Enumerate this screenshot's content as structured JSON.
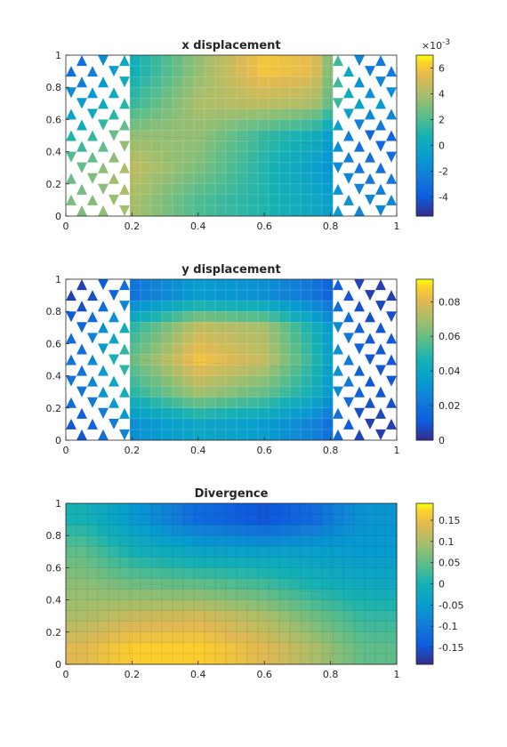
{
  "chart_data": [
    {
      "type": "heatmap",
      "title": "x displacement",
      "xlabel": "",
      "ylabel": "",
      "xlim": [
        0,
        1
      ],
      "ylim": [
        0,
        1
      ],
      "x_ticks": [
        "0",
        "0.2",
        "0.4",
        "0.6",
        "0.8",
        "1"
      ],
      "y_ticks": [
        "0",
        "0.2",
        "0.4",
        "0.6",
        "0.8",
        "1"
      ],
      "colorbar": {
        "range": [
          -5.5,
          7
        ],
        "ticks": [
          "-4",
          "-2",
          "0",
          "2",
          "4",
          "6"
        ],
        "tick_values": [
          -4,
          -2,
          0,
          2,
          4,
          6
        ],
        "exponent_base": "×10",
        "exponent_power": "-3"
      },
      "field_samples": {
        "x": [
          0.05,
          0.2,
          0.4,
          0.6,
          0.75,
          0.9
        ],
        "y": [
          0.1,
          0.3,
          0.5,
          0.7,
          0.9
        ],
        "values": [
          [
            3.0,
            4.0,
            2.0,
            1.0,
            0.0,
            -2.0
          ],
          [
            2.5,
            4.5,
            3.0,
            1.0,
            -0.5,
            -3.0
          ],
          [
            1.0,
            3.5,
            3.5,
            1.5,
            0.5,
            -3.5
          ],
          [
            -1.0,
            1.5,
            4.0,
            4.5,
            4.0,
            -1.0
          ],
          [
            -3.0,
            0.5,
            3.5,
            6.0,
            5.5,
            -2.5
          ]
        ]
      }
    },
    {
      "type": "heatmap",
      "title": "y displacement",
      "xlabel": "",
      "ylabel": "",
      "xlim": [
        0,
        1
      ],
      "ylim": [
        0,
        1
      ],
      "x_ticks": [
        "0",
        "0.2",
        "0.4",
        "0.6",
        "0.8",
        "1"
      ],
      "y_ticks": [
        "0",
        "0.2",
        "0.4",
        "0.6",
        "0.8",
        "1"
      ],
      "colorbar": {
        "range": [
          0,
          0.093
        ],
        "ticks": [
          "0",
          "0.02",
          "0.04",
          "0.06",
          "0.08"
        ],
        "tick_values": [
          0,
          0.02,
          0.04,
          0.06,
          0.08
        ]
      },
      "field_samples": {
        "x": [
          0.05,
          0.2,
          0.4,
          0.6,
          0.75,
          0.9
        ],
        "y": [
          0.1,
          0.3,
          0.5,
          0.7,
          0.9
        ],
        "values": [
          [
            0.01,
            0.03,
            0.04,
            0.035,
            0.025,
            0.005
          ],
          [
            0.02,
            0.05,
            0.07,
            0.06,
            0.045,
            0.01
          ],
          [
            0.02,
            0.06,
            0.085,
            0.075,
            0.05,
            0.01
          ],
          [
            0.015,
            0.05,
            0.075,
            0.07,
            0.045,
            0.01
          ],
          [
            0.005,
            0.02,
            0.035,
            0.03,
            0.02,
            0.005
          ]
        ]
      }
    },
    {
      "type": "heatmap",
      "title": "Divergence",
      "xlabel": "",
      "ylabel": "",
      "xlim": [
        0,
        1
      ],
      "ylim": [
        0,
        1
      ],
      "x_ticks": [
        "0",
        "0.2",
        "0.4",
        "0.6",
        "0.8",
        "1"
      ],
      "y_ticks": [
        "0",
        "0.2",
        "0.4",
        "0.6",
        "0.8",
        "1"
      ],
      "colorbar": {
        "range": [
          -0.19,
          0.19
        ],
        "ticks": [
          "-0.15",
          "-0.1",
          "-0.05",
          "0",
          "0.05",
          "0.1",
          "0.15"
        ],
        "tick_values": [
          -0.15,
          -0.1,
          -0.05,
          0,
          0.05,
          0.1,
          0.15
        ]
      },
      "field_samples": {
        "x": [
          0.05,
          0.2,
          0.4,
          0.6,
          0.75,
          0.9
        ],
        "y": [
          0.1,
          0.3,
          0.5,
          0.7,
          0.9
        ],
        "values": [
          [
            0.14,
            0.17,
            0.17,
            0.14,
            0.1,
            0.05
          ],
          [
            0.1,
            0.12,
            0.13,
            0.1,
            0.06,
            0.02
          ],
          [
            0.08,
            0.06,
            0.05,
            0.03,
            0.0,
            -0.02
          ],
          [
            0.05,
            0.0,
            -0.03,
            -0.04,
            -0.04,
            -0.05
          ],
          [
            0.0,
            -0.05,
            -0.12,
            -0.15,
            -0.12,
            -0.06
          ]
        ]
      }
    }
  ]
}
